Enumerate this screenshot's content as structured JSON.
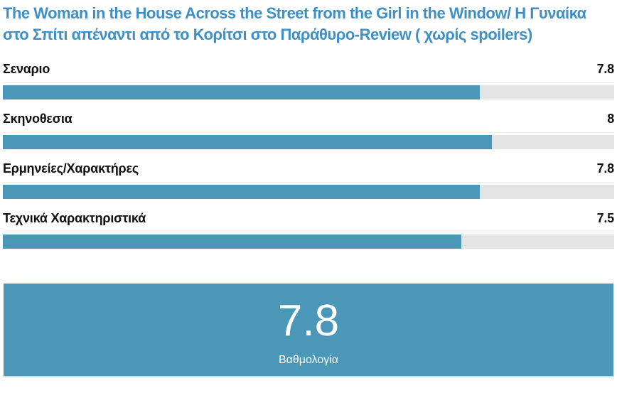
{
  "title": "The Woman in the House Across the Street from the Girl in the Window/ Η Γυναίκα στο Σπίτι απέναντι από το Κορίτσι στο Παράθυρο-Review ( χωρίς spoilers)",
  "ratings": [
    {
      "label": "Σεναριο",
      "score": "7.8",
      "percent": "78%"
    },
    {
      "label": "Σκηνοθεσια",
      "score": "8",
      "percent": "80%"
    },
    {
      "label": "Ερμηνείες/Χαρακτήρες",
      "score": "7.8",
      "percent": "78%"
    },
    {
      "label": "Τεχνικά Χαρακτηριστικά",
      "score": "7.5",
      "percent": "75%"
    }
  ],
  "summary": {
    "score": "7.8",
    "label": "Βαθμολογία"
  },
  "colors": {
    "title": "#3e90c4",
    "bar_fill": "#4a97b7",
    "bar_track": "#e4e4e4",
    "summary_bg": "#4a97b7",
    "summary_text": "#ffffff",
    "label_text": "#101010",
    "divider": "#ededed",
    "summary_bottom_edge": "#c5e0ec"
  },
  "chart_data": {
    "type": "bar",
    "orientation": "horizontal",
    "title": "The Woman in the House Across the Street from the Girl in the Window/ Η Γυναίκα στο Σπίτι απέναντι από το Κορίτσι στο Παράθυρο-Review ( χωρίς spoilers)",
    "categories": [
      "Σεναριο",
      "Σκηνοθεσια",
      "Ερμηνείες/Χαρακτήρες",
      "Τεχνικά Χαρακτηριστικά"
    ],
    "values": [
      7.8,
      8,
      7.8,
      7.5
    ],
    "value_labels": [
      "7.8",
      "8",
      "7.8",
      "7.5"
    ],
    "xlim": [
      0,
      10
    ],
    "grid": false,
    "legend": false,
    "overall_score": 7.8,
    "overall_score_label": "Βαθμολογία",
    "bar_color": "#4a97b7",
    "track_color": "#e4e4e4"
  }
}
